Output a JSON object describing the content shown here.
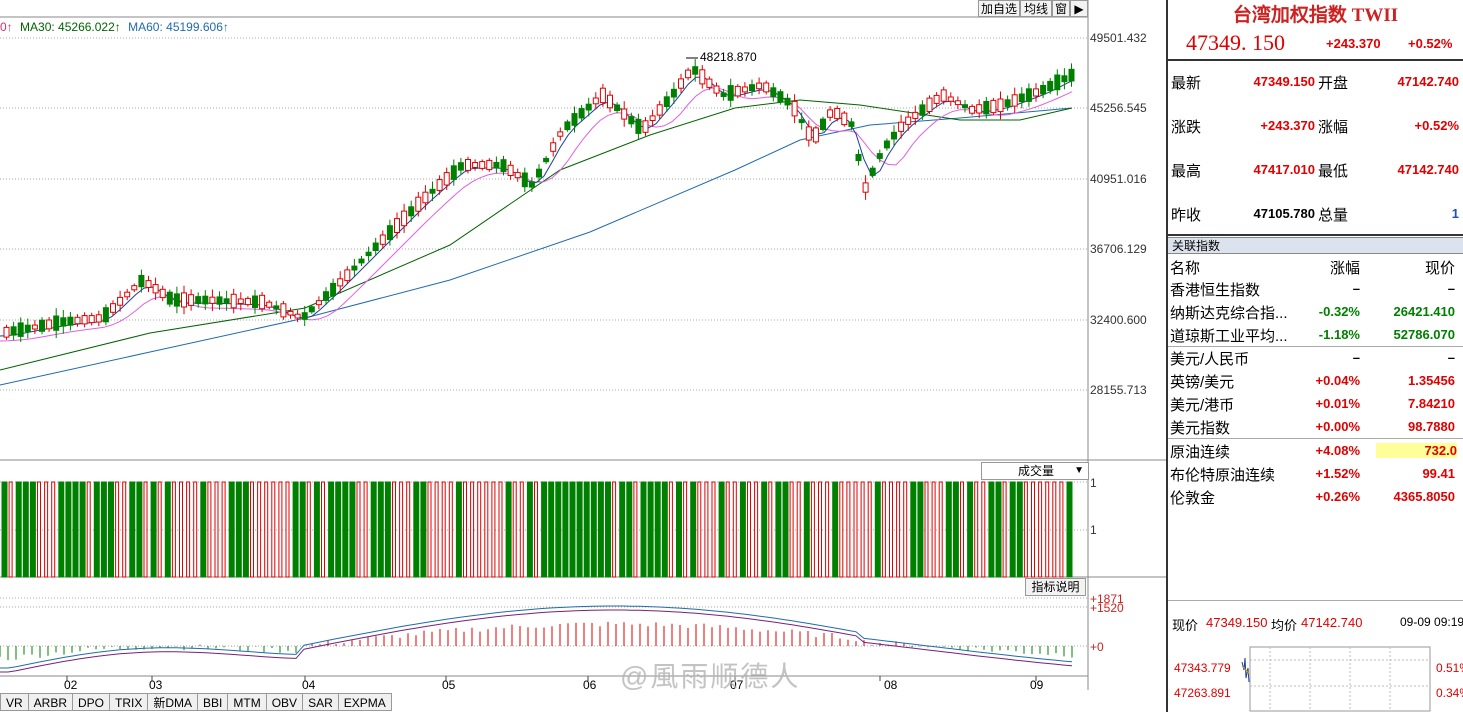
{
  "toolbar": {
    "add_watch": "加自选",
    "average_line": "均线",
    "window": "窗",
    "play": "▶"
  },
  "ma_legend": {
    "prefix": "0↑",
    "ma30": "MA30: 45266.022↑",
    "ma60": "MA60: 45199.606↑"
  },
  "y_axis_labels": [
    "49501.432",
    "45256.545",
    "40951.016",
    "36706.129",
    "32400.600",
    "28155.713"
  ],
  "peak_label": "48218.870",
  "volume": {
    "selector": "成交量",
    "scale_top": "1",
    "scale_mid": "1"
  },
  "indicator": {
    "explain_button": "指标说明",
    "labels": [
      "+1871",
      "+1520",
      "+0"
    ]
  },
  "x_axis_labels": [
    "02",
    "03",
    "04",
    "05",
    "06",
    "07",
    "08",
    "09"
  ],
  "tabs": [
    "VR",
    "ARBR",
    "DPO",
    "TRIX",
    "新DMA",
    "BBI",
    "MTM",
    "OBV",
    "SAR",
    "EXPMA"
  ],
  "watermark": "@風雨顺德人",
  "colors": {
    "up": "#e00000",
    "down": "#008000",
    "ma5": "#1a3e9e",
    "ma10": "#e060e0",
    "ma30": "#006400",
    "ma60": "#1f6bb0"
  },
  "panel": {
    "title": "台湾加权指数 TWII",
    "price": "47349. 150",
    "change": "+243.370",
    "change_pct": "+0.52%",
    "quote_rows": [
      {
        "k1": "最新",
        "v1": "47349.150",
        "k2": "开盘",
        "v2": "47142.740"
      },
      {
        "k1": "涨跌",
        "v1": "+243.370",
        "k2": "涨幅",
        "v2": "+0.52%"
      },
      {
        "k1": "最高",
        "v1": "47417.010",
        "k2": "最低",
        "v2": "47142.740"
      },
      {
        "k1": "昨收",
        "v1": "47105.780",
        "k2": "总量",
        "v2": "1"
      }
    ],
    "related_header": "关联指数",
    "related_columns": {
      "name": "名称",
      "pct": "涨幅",
      "cur": "现价"
    },
    "related": [
      {
        "name": "香港恒生指数",
        "pct": "–",
        "cur": "–",
        "dir": "flat"
      },
      {
        "name": "纳斯达克综合指...",
        "pct": "-0.32%",
        "cur": "26421.410",
        "dir": "down"
      },
      {
        "name": "道琼斯工业平均...",
        "pct": "-1.18%",
        "cur": "52786.070",
        "dir": "down"
      },
      {
        "name": "美元/人民币",
        "pct": "–",
        "cur": "–",
        "dir": "flat"
      },
      {
        "name": "英镑/美元",
        "pct": "+0.04%",
        "cur": "1.35456",
        "dir": "up"
      },
      {
        "name": "美元/港币",
        "pct": "+0.01%",
        "cur": "7.84210",
        "dir": "up"
      },
      {
        "name": "美元指数",
        "pct": "+0.00%",
        "cur": "98.7880",
        "dir": "up"
      },
      {
        "name": "原油连续",
        "pct": "+4.08%",
        "cur": "732.0",
        "dir": "up",
        "highlight": true
      },
      {
        "name": "布伦特原油连续",
        "pct": "+1.52%",
        "cur": "99.41",
        "dir": "up"
      },
      {
        "name": "伦敦金",
        "pct": "+0.26%",
        "cur": "4365.8050",
        "dir": "up"
      }
    ],
    "mini": {
      "cur_label": "现价",
      "cur": "47349.150",
      "avg_label": "均价",
      "avg": "47142.740",
      "time": "09-09 09:19",
      "levels": [
        "47343.779",
        "47263.891"
      ],
      "pcts": [
        "0.51%",
        "0.34%"
      ]
    }
  }
}
